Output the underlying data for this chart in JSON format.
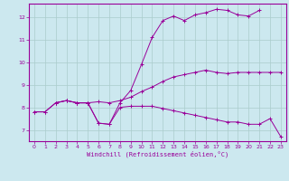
{
  "bg_color": "#cce8ef",
  "line_color": "#990099",
  "grid_color": "#aacccc",
  "xlabel": "Windchill (Refroidissement éolien,°C)",
  "xlim": [
    -0.5,
    23.5
  ],
  "ylim": [
    6.5,
    12.6
  ],
  "yticks": [
    7,
    8,
    9,
    10,
    11,
    12
  ],
  "xticks": [
    0,
    1,
    2,
    3,
    4,
    5,
    6,
    7,
    8,
    9,
    10,
    11,
    12,
    13,
    14,
    15,
    16,
    17,
    18,
    19,
    20,
    21,
    22,
    23
  ],
  "line1_x": [
    0,
    1,
    2,
    3,
    4,
    5,
    6,
    7,
    8,
    9,
    10,
    11,
    12,
    13,
    14,
    15,
    16,
    17,
    18,
    19,
    20,
    21,
    22,
    23
  ],
  "line1_y": [
    7.8,
    7.8,
    8.2,
    8.3,
    8.2,
    8.2,
    7.3,
    7.25,
    8.0,
    8.05,
    8.05,
    8.05,
    7.95,
    7.85,
    7.75,
    7.65,
    7.55,
    7.45,
    7.35,
    7.35,
    7.25,
    7.25,
    7.5,
    6.7
  ],
  "line2_x": [
    0,
    1,
    2,
    3,
    4,
    5,
    6,
    7,
    8,
    9,
    10,
    11,
    12,
    13,
    14,
    15,
    16,
    17,
    18,
    19,
    20,
    21,
    22,
    23
  ],
  "line2_y": [
    7.8,
    7.8,
    8.2,
    8.3,
    8.2,
    8.2,
    8.25,
    8.2,
    8.3,
    8.45,
    8.7,
    8.9,
    9.15,
    9.35,
    9.45,
    9.55,
    9.65,
    9.55,
    9.5,
    9.55,
    9.55,
    9.55,
    9.55,
    9.55
  ],
  "line3_x": [
    2,
    3,
    4,
    5,
    6,
    7,
    8,
    9,
    10,
    11,
    12,
    13,
    14,
    15,
    16,
    17,
    18,
    19,
    20,
    21
  ],
  "line3_y": [
    8.2,
    8.3,
    8.2,
    8.2,
    7.3,
    7.25,
    8.2,
    8.75,
    9.9,
    11.1,
    11.85,
    12.05,
    11.85,
    12.1,
    12.2,
    12.35,
    12.3,
    12.1,
    12.05,
    12.3
  ]
}
